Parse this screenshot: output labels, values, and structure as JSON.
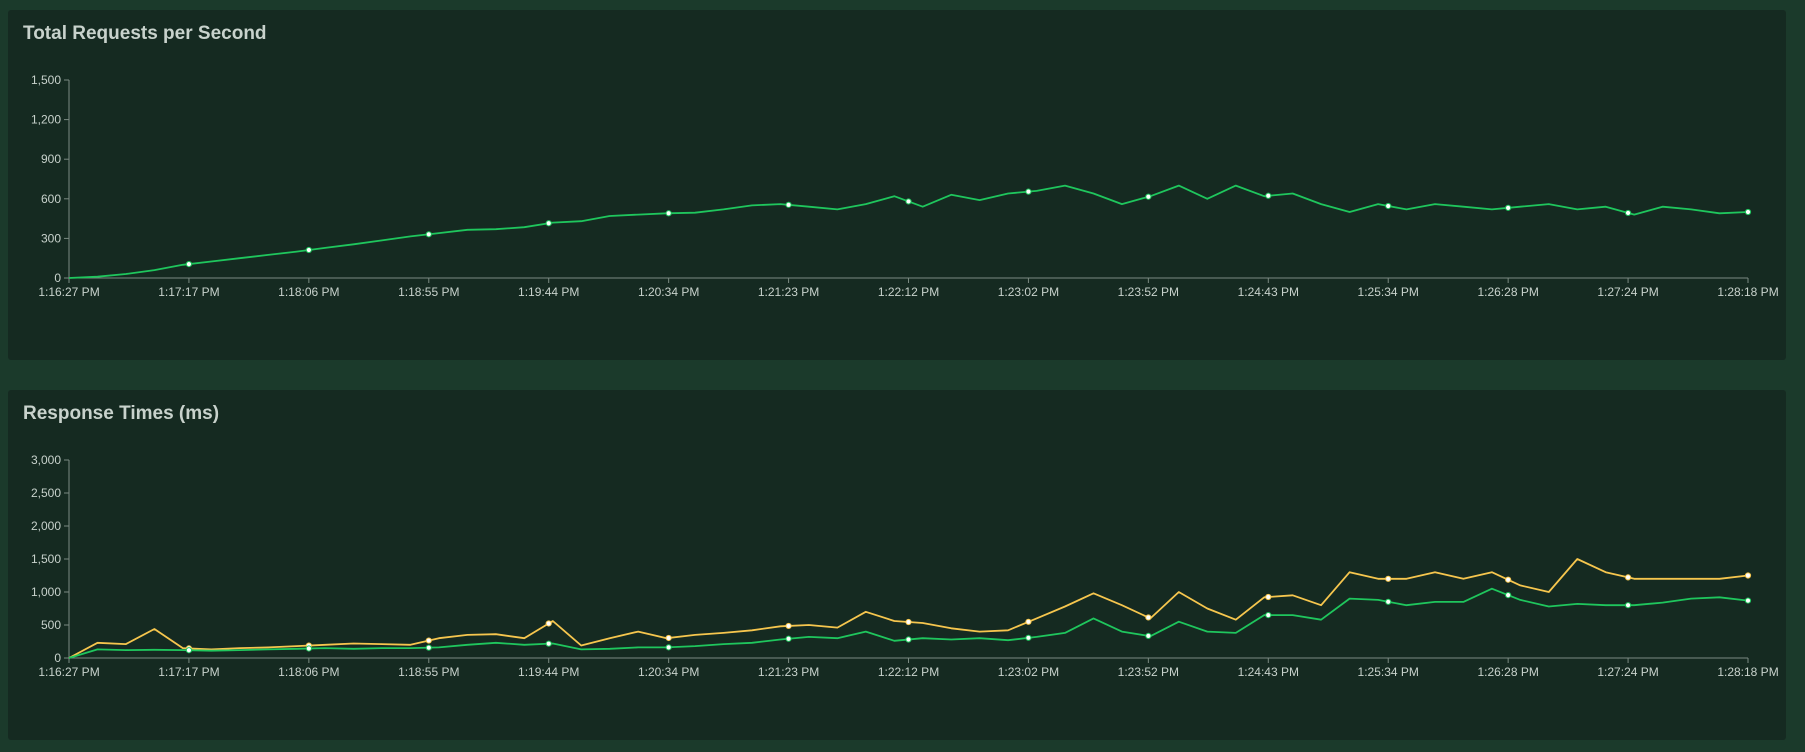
{
  "colors": {
    "background": "#1b3a2b",
    "panel": "#152a21",
    "green": "#1fc65d",
    "yellow": "#f6c64e",
    "axis": "#7b8a82",
    "text": "#c8d2cc"
  },
  "chart_data": [
    {
      "type": "line",
      "title": "Total Requests per Second",
      "xlabel": "",
      "ylabel": "",
      "ylim": [
        0,
        1500
      ],
      "yticks": [
        "0",
        "300",
        "600",
        "900",
        "1,200",
        "1,500"
      ],
      "ytick_values": [
        0,
        300,
        600,
        900,
        1200,
        1500
      ],
      "x_tick_labels": [
        "1:16:27 PM",
        "1:17:17 PM",
        "1:18:06 PM",
        "1:18:55 PM",
        "1:19:44 PM",
        "1:20:34 PM",
        "1:21:23 PM",
        "1:22:12 PM",
        "1:23:02 PM",
        "1:23:52 PM",
        "1:24:43 PM",
        "1:25:34 PM",
        "1:26:28 PM",
        "1:27:24 PM",
        "1:28:18 PM"
      ],
      "grid": false,
      "legend": "none",
      "series": [
        {
          "color": "#1fc65d",
          "values": [
            0,
            10,
            30,
            60,
            100,
            125,
            150,
            175,
            200,
            228,
            255,
            285,
            315,
            340,
            365,
            370,
            385,
            420,
            430,
            470,
            480,
            490,
            495,
            520,
            550,
            560,
            540,
            520,
            560,
            620,
            540,
            630,
            590,
            640,
            660,
            700,
            640,
            560,
            620,
            700,
            600,
            700,
            620,
            640,
            560,
            500,
            560,
            520,
            560,
            540,
            520,
            540,
            560,
            520,
            540,
            480,
            540,
            520,
            490,
            500
          ]
        }
      ]
    },
    {
      "type": "line",
      "title": "Response Times (ms)",
      "xlabel": "",
      "ylabel": "",
      "ylim": [
        0,
        3000
      ],
      "yticks": [
        "0",
        "500",
        "1,000",
        "1,500",
        "2,000",
        "2,500",
        "3,000"
      ],
      "ytick_values": [
        0,
        500,
        1000,
        1500,
        2000,
        2500,
        3000
      ],
      "x_tick_labels": [
        "1:16:27 PM",
        "1:17:17 PM",
        "1:18:06 PM",
        "1:18:55 PM",
        "1:19:44 PM",
        "1:20:34 PM",
        "1:21:23 PM",
        "1:22:12 PM",
        "1:23:02 PM",
        "1:23:52 PM",
        "1:24:43 PM",
        "1:25:34 PM",
        "1:26:28 PM",
        "1:27:24 PM",
        "1:28:18 PM"
      ],
      "grid": false,
      "legend": "none",
      "series": [
        {
          "color": "#f6c64e",
          "values": [
            0,
            230,
            210,
            440,
            150,
            130,
            150,
            160,
            180,
            200,
            220,
            210,
            200,
            300,
            350,
            360,
            300,
            560,
            190,
            300,
            400,
            300,
            350,
            380,
            420,
            480,
            500,
            460,
            700,
            560,
            530,
            450,
            400,
            420,
            600,
            780,
            980,
            800,
            600,
            1000,
            750,
            580,
            920,
            950,
            800,
            1300,
            1200,
            1200,
            1300,
            1200,
            1300,
            1100,
            1000,
            1500,
            1300,
            1200,
            1200,
            1200,
            1200,
            1250
          ]
        },
        {
          "color": "#1fc65d",
          "values": [
            0,
            130,
            120,
            125,
            120,
            110,
            120,
            130,
            140,
            150,
            140,
            150,
            150,
            160,
            200,
            230,
            200,
            220,
            130,
            140,
            160,
            160,
            180,
            210,
            230,
            280,
            320,
            300,
            400,
            260,
            300,
            280,
            300,
            270,
            320,
            380,
            600,
            400,
            330,
            550,
            400,
            380,
            650,
            650,
            580,
            900,
            880,
            800,
            850,
            850,
            1050,
            880,
            780,
            820,
            800,
            800,
            840,
            900,
            920,
            870
          ]
        }
      ]
    }
  ],
  "panels": [
    {
      "title": "Total Requests per Second"
    },
    {
      "title": "Response Times (ms)"
    }
  ]
}
